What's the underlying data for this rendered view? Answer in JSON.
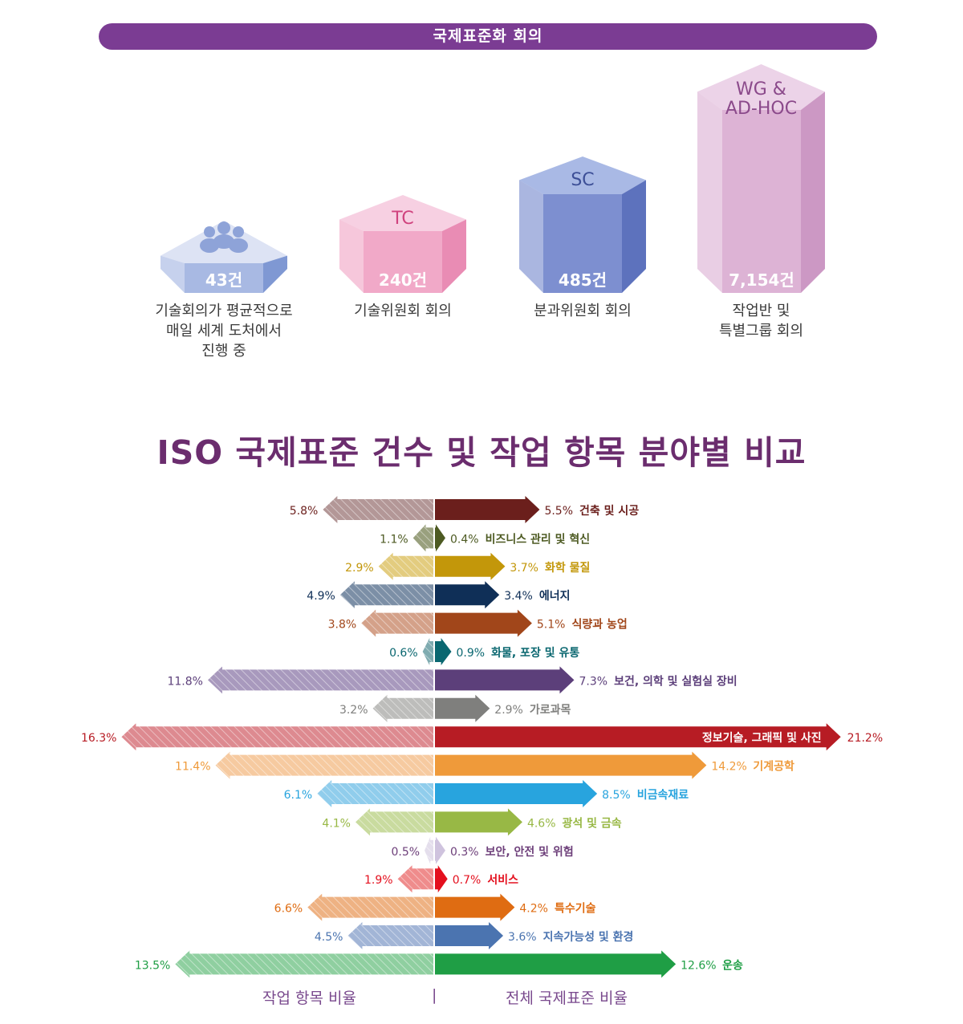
{
  "banner": {
    "title": "국제표준화 회의"
  },
  "meetings": [
    {
      "count": "43건",
      "caption": [
        "기술회의가 평균적으로",
        "매일 세계 도처에서",
        "진행 중"
      ],
      "icon": "people-icon",
      "top": "#dde3f4",
      "front": "#a8b9e3",
      "side": "#7f98d3",
      "labelColor": "#ffffff",
      "value": 43
    },
    {
      "label": "TC",
      "count": "240건",
      "caption": [
        "기술위원회 회의"
      ],
      "top": "#f7d0e2",
      "front": "#f1a9c8",
      "side": "#e98cb4",
      "labelColor": "#d0437e",
      "value": 240
    },
    {
      "label": "SC",
      "count": "485건",
      "caption": [
        "분과위원회 회의"
      ],
      "top": "#a9b9e5",
      "front": "#7d8fd0",
      "side": "#5d72bd",
      "labelColor": "#3d4f97",
      "value": 485
    },
    {
      "label": "WG &",
      "label2": "AD-HOC",
      "count": "7,154건",
      "caption": [
        "작업반 및",
        "특별그룹 회의"
      ],
      "top": "#ecd3e8",
      "front": "#ddb3d5",
      "side": "#cc98c4",
      "labelColor": "#8b4a8b",
      "value": 7154
    }
  ],
  "title": "ISO 국제표준 건수 및 작업 항목 분야별 비교",
  "chart_data": {
    "type": "bar",
    "title": "ISO 국제표준 건수 및 작업 항목 분야별 비교",
    "left_series": "작업 항목 비율",
    "right_series": "전체 국제표준 비율",
    "divider": "|",
    "unit": "%",
    "categories": [
      {
        "name": "건축 및 시공",
        "left": 5.8,
        "right": 5.5,
        "leftLabel": "5.8%",
        "rightLabel": "5.5%",
        "color": "#6b1f1c",
        "light": "#b39797"
      },
      {
        "name": "비즈니스 관리 및 혁신",
        "left": 1.1,
        "right": 0.4,
        "leftLabel": "1.1%",
        "rightLabel": "0.4%",
        "color": "#4d5a22",
        "light": "#99a07e"
      },
      {
        "name": "화학 물질",
        "left": 2.9,
        "right": 3.7,
        "leftLabel": "2.9%",
        "rightLabel": "3.7%",
        "color": "#c3970a",
        "light": "#e3cc7f"
      },
      {
        "name": "에너지",
        "left": 4.9,
        "right": 3.4,
        "leftLabel": "4.9%",
        "rightLabel": "3.4%",
        "color": "#0f2f57",
        "light": "#7c8fa6"
      },
      {
        "name": "식량과 농업",
        "left": 3.8,
        "right": 5.1,
        "leftLabel": "3.8%",
        "rightLabel": "5.1%",
        "color": "#a1461a",
        "light": "#d4a189"
      },
      {
        "name": "화물, 포장 및 유통",
        "left": 0.6,
        "right": 0.9,
        "leftLabel": "0.6%",
        "rightLabel": "0.9%",
        "color": "#0a6770",
        "light": "#7fabb0"
      },
      {
        "name": "보건, 의학 및 실험실 장비",
        "left": 11.8,
        "right": 7.3,
        "leftLabel": "11.8%",
        "rightLabel": "7.3%",
        "color": "#5c3f7a",
        "light": "#a899bd"
      },
      {
        "name": "가로과목",
        "left": 3.2,
        "right": 2.9,
        "leftLabel": "3.2%",
        "rightLabel": "2.9%",
        "color": "#7f7f7d",
        "light": "#bdbdbb"
      },
      {
        "name": "정보기술, 그래픽 및 사진",
        "left": 16.3,
        "right": 21.2,
        "leftLabel": "16.3%",
        "rightLabel": "21.2%",
        "color": "#b71c24",
        "light": "#dd8a90",
        "labelInside": true
      },
      {
        "name": "기계공학",
        "left": 11.4,
        "right": 14.2,
        "leftLabel": "11.4%",
        "rightLabel": "14.2%",
        "color": "#ef9a3a",
        "light": "#f6caa0"
      },
      {
        "name": "비금속재료",
        "left": 6.1,
        "right": 8.5,
        "leftLabel": "6.1%",
        "rightLabel": "8.5%",
        "color": "#28a4de",
        "light": "#90cdec"
      },
      {
        "name": "광석 및 금속",
        "left": 4.1,
        "right": 4.6,
        "leftLabel": "4.1%",
        "rightLabel": "4.6%",
        "color": "#98b845",
        "light": "#c9db9f"
      },
      {
        "name": "보안, 안전 및 위험",
        "left": 0.5,
        "right": 0.3,
        "leftLabel": "0.5%",
        "rightLabel": "0.3%",
        "color": "#cfc3de",
        "light": "#e4deec",
        "textColor": "#6d3f7a"
      },
      {
        "name": "서비스",
        "left": 1.9,
        "right": 0.7,
        "leftLabel": "1.9%",
        "rightLabel": "0.7%",
        "color": "#e4101e",
        "light": "#ef8c8c"
      },
      {
        "name": "특수기술",
        "left": 6.6,
        "right": 4.2,
        "leftLabel": "6.6%",
        "rightLabel": "4.2%",
        "color": "#df6c12",
        "light": "#eeb283"
      },
      {
        "name": "지속가능성 및 환경",
        "left": 4.5,
        "right": 3.6,
        "leftLabel": "4.5%",
        "rightLabel": "3.6%",
        "color": "#4b74b0",
        "light": "#a2b5d6"
      },
      {
        "name": "운송",
        "left": 13.5,
        "right": 12.6,
        "leftLabel": "13.5%",
        "rightLabel": "12.6%",
        "color": "#1f9e45",
        "light": "#8fcfa0"
      }
    ]
  }
}
